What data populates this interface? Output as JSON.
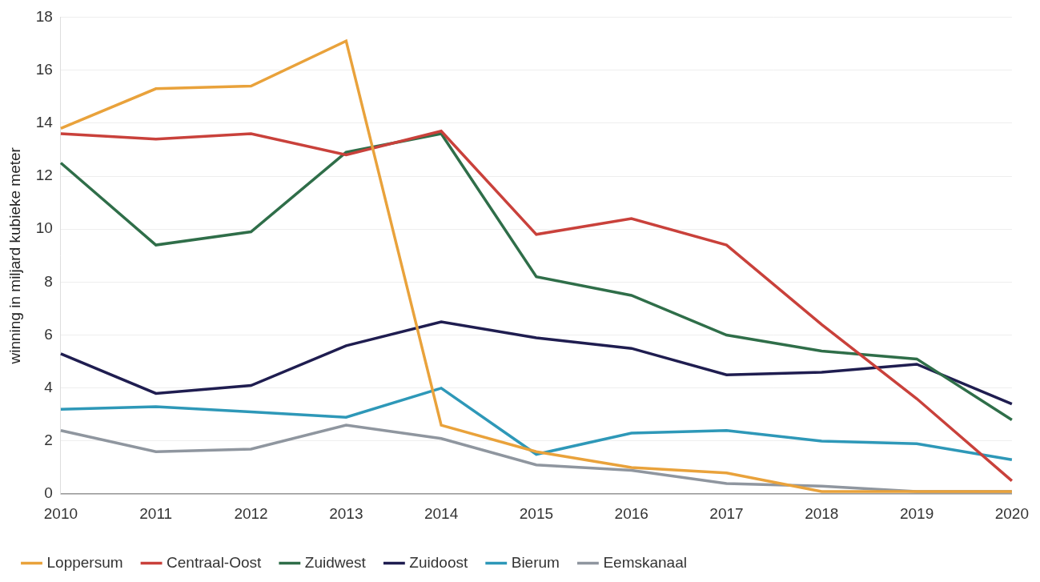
{
  "chart_data": {
    "type": "line",
    "y_label": "winning in miljard kubieke meter",
    "categories": [
      "2010",
      "2011",
      "2012",
      "2013",
      "2014",
      "2015",
      "2016",
      "2017",
      "2018",
      "2019",
      "2020"
    ],
    "series": [
      {
        "name": "Loppersum",
        "color": "#e9a23b",
        "values": [
          13.8,
          15.3,
          15.4,
          17.1,
          2.6,
          1.6,
          1.0,
          0.8,
          0.1,
          0.1,
          0.1
        ]
      },
      {
        "name": "Centraal-Oost",
        "color": "#c9413b",
        "values": [
          13.6,
          13.4,
          13.6,
          12.8,
          13.7,
          9.8,
          10.4,
          9.4,
          6.4,
          3.6,
          0.5
        ]
      },
      {
        "name": "Zuidwest",
        "color": "#2f6e49",
        "values": [
          12.5,
          9.4,
          9.9,
          12.9,
          13.6,
          8.2,
          7.5,
          6.0,
          5.4,
          5.1,
          2.8
        ]
      },
      {
        "name": "Zuidoost",
        "color": "#1f1d50",
        "values": [
          5.3,
          3.8,
          4.1,
          5.6,
          6.5,
          5.9,
          5.5,
          4.5,
          4.6,
          4.9,
          3.4
        ]
      },
      {
        "name": "Bierum",
        "color": "#2e98b8",
        "values": [
          3.2,
          3.3,
          3.1,
          2.9,
          4.0,
          1.5,
          2.3,
          2.4,
          2.0,
          1.9,
          1.3
        ]
      },
      {
        "name": "Eemskanaal",
        "color": "#8f969f",
        "values": [
          2.4,
          1.6,
          1.7,
          2.6,
          2.1,
          1.1,
          0.9,
          0.4,
          0.3,
          0.1,
          0.1
        ]
      }
    ],
    "ylim": [
      0,
      18
    ],
    "yticks": [
      0,
      2,
      4,
      6,
      8,
      10,
      12,
      14,
      16,
      18
    ],
    "grid": true,
    "legend": "bottom"
  }
}
